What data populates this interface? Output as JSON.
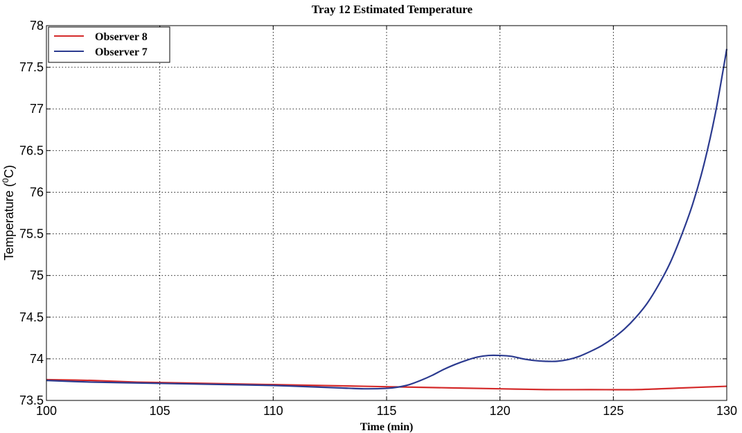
{
  "chart_data": {
    "type": "line",
    "title": "Tray  12 Estimated Temperature",
    "xlabel": "Time (min)",
    "ylabel": "Temperature (",
    "ylabel_sup": "0",
    "ylabel_unit": "C)",
    "xlim": [
      100,
      130
    ],
    "ylim": [
      73.5,
      78
    ],
    "xticks": [
      100,
      105,
      110,
      115,
      120,
      125,
      130
    ],
    "yticks": [
      73.5,
      74,
      74.5,
      75,
      75.5,
      76,
      76.5,
      77,
      77.5,
      78
    ],
    "grid": true,
    "legend_position": "top-left",
    "series": [
      {
        "name": "Observer 8",
        "color": "#d42a2a",
        "x": [
          100,
          102,
          104,
          106,
          108,
          110,
          112,
          114,
          116,
          118,
          120,
          122,
          124,
          126,
          128,
          130
        ],
        "y": [
          73.75,
          73.74,
          73.72,
          73.71,
          73.7,
          73.69,
          73.68,
          73.67,
          73.66,
          73.65,
          73.64,
          73.63,
          73.63,
          73.63,
          73.65,
          73.67
        ]
      },
      {
        "name": "Observer 7",
        "color": "#2b3a8f",
        "x": [
          100,
          102,
          104,
          106,
          108,
          110,
          112,
          113,
          114,
          115,
          115.5,
          116,
          116.5,
          117,
          117.5,
          118,
          118.5,
          119,
          119.5,
          120,
          120.5,
          121,
          121.5,
          122,
          122.5,
          123,
          123.5,
          124,
          124.5,
          125,
          125.5,
          126,
          126.5,
          127,
          127.5,
          128,
          128.5,
          129,
          129.5,
          130
        ],
        "y": [
          73.74,
          73.72,
          73.71,
          73.7,
          73.69,
          73.68,
          73.66,
          73.65,
          73.64,
          73.645,
          73.66,
          73.69,
          73.74,
          73.8,
          73.87,
          73.93,
          73.98,
          74.02,
          74.04,
          74.04,
          74.03,
          74.0,
          73.98,
          73.97,
          73.97,
          73.99,
          74.03,
          74.09,
          74.16,
          74.25,
          74.36,
          74.5,
          74.67,
          74.89,
          75.15,
          75.48,
          75.86,
          76.34,
          76.95,
          77.72
        ]
      }
    ]
  }
}
